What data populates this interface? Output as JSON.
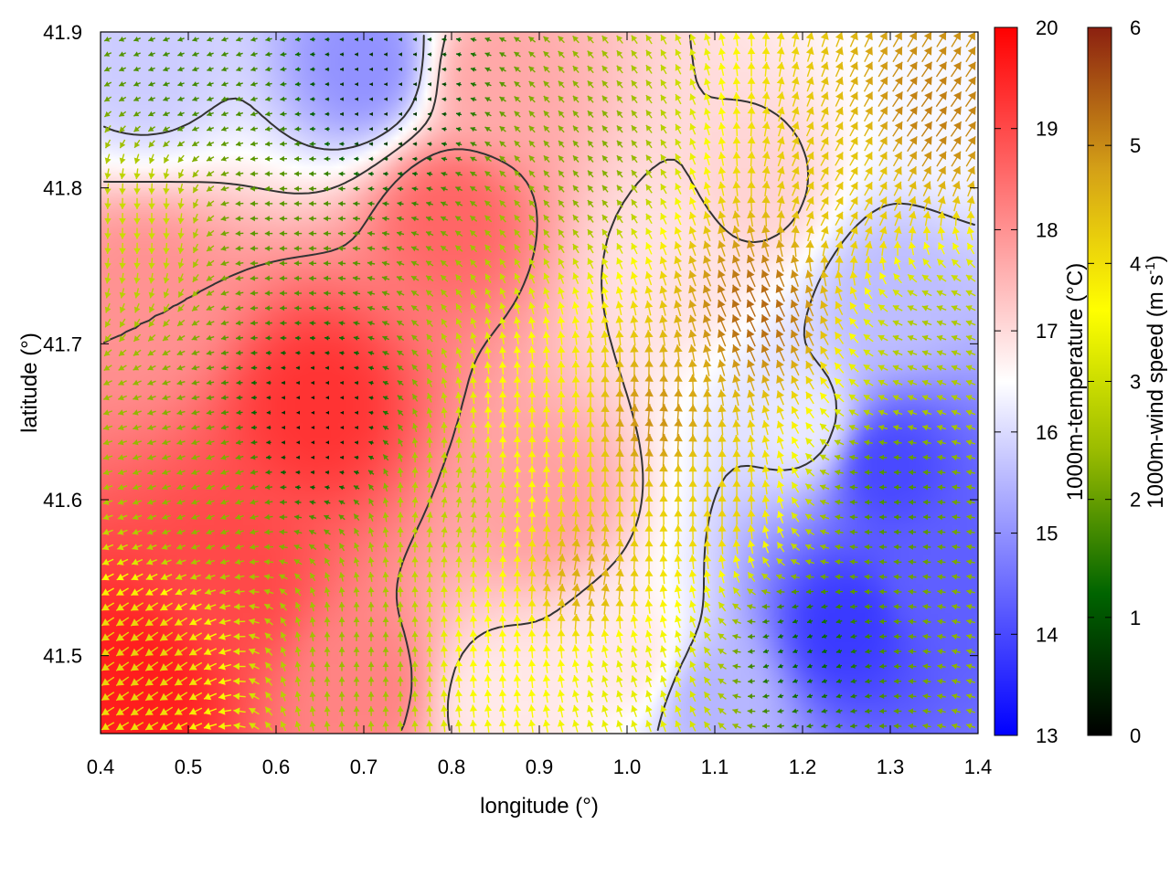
{
  "chart_data": {
    "type": "heatmap",
    "title": "",
    "xlabel": "longitude (°)",
    "ylabel": "latitude (°)",
    "xlim": [
      0.4,
      1.4
    ],
    "ylim": [
      41.45,
      41.9
    ],
    "xticks": [
      "0.4",
      "0.5",
      "0.6",
      "0.7",
      "0.8",
      "0.9",
      "1.0",
      "1.1",
      "1.2",
      "1.3",
      "1.4"
    ],
    "yticks": [
      "41.5",
      "41.6",
      "41.7",
      "41.8",
      "41.9"
    ],
    "temperature_colorbar": {
      "label": "1000m-temperature (°C)",
      "range": [
        13,
        20
      ],
      "ticks": [
        "13",
        "14",
        "15",
        "16",
        "17",
        "18",
        "19",
        "20"
      ],
      "colors": [
        "#0000ff",
        "#ffffff",
        "#ff0000"
      ]
    },
    "wind_colorbar": {
      "label_main": "1000m-wind speed (m s",
      "label_sup": "-1",
      "label_end": ")",
      "range": [
        0,
        6
      ],
      "ticks": [
        "0",
        "1",
        "2",
        "3",
        "4",
        "5",
        "6"
      ],
      "colors": [
        "#000000",
        "#006400",
        "#99bb00",
        "#ffff00",
        "#d4a017",
        "#8b2010"
      ]
    },
    "temperature_field": [
      {
        "lon": 0.65,
        "lat": 41.66,
        "value": 19.3
      },
      {
        "lon": 0.44,
        "lat": 41.48,
        "value": 19.6
      },
      {
        "lon": 0.55,
        "lat": 41.55,
        "value": 19.0
      },
      {
        "lon": 0.8,
        "lat": 41.78,
        "value": 18.6
      },
      {
        "lon": 0.85,
        "lat": 41.87,
        "value": 17.7
      },
      {
        "lon": 0.45,
        "lat": 41.73,
        "value": 18.0
      },
      {
        "lon": 0.9,
        "lat": 41.6,
        "value": 17.8
      },
      {
        "lon": 1.05,
        "lat": 41.75,
        "value": 16.9
      },
      {
        "lon": 1.15,
        "lat": 41.8,
        "value": 17.1
      },
      {
        "lon": 0.7,
        "lat": 41.88,
        "value": 15.0
      },
      {
        "lon": 0.45,
        "lat": 41.88,
        "value": 15.8
      },
      {
        "lon": 0.7,
        "lat": 41.48,
        "value": 18.2
      },
      {
        "lon": 1.0,
        "lat": 41.5,
        "value": 16.8
      },
      {
        "lon": 1.25,
        "lat": 41.52,
        "value": 13.8
      },
      {
        "lon": 1.3,
        "lat": 41.62,
        "value": 14.0
      },
      {
        "lon": 1.35,
        "lat": 41.55,
        "value": 14.3
      },
      {
        "lon": 1.3,
        "lat": 41.73,
        "value": 15.6
      },
      {
        "lon": 1.38,
        "lat": 41.85,
        "value": 16.4
      },
      {
        "lon": 1.1,
        "lat": 41.47,
        "value": 15.5
      },
      {
        "lon": 0.85,
        "lat": 41.47,
        "value": 16.8
      },
      {
        "lon": 1.2,
        "lat": 41.65,
        "value": 16.2
      }
    ],
    "wind_field": [
      {
        "lon": 0.45,
        "lat": 41.5,
        "speed": 4.2,
        "dir": 215
      },
      {
        "lon": 0.52,
        "lat": 41.6,
        "speed": 2.3,
        "dir": 200
      },
      {
        "lon": 0.65,
        "lat": 41.65,
        "speed": 0.3,
        "dir": 180
      },
      {
        "lon": 0.6,
        "lat": 41.78,
        "speed": 1.9,
        "dir": 180
      },
      {
        "lon": 0.45,
        "lat": 41.78,
        "speed": 3.0,
        "dir": 270
      },
      {
        "lon": 0.5,
        "lat": 41.87,
        "speed": 1.7,
        "dir": 200
      },
      {
        "lon": 0.72,
        "lat": 41.86,
        "speed": 0.5,
        "dir": 180
      },
      {
        "lon": 0.8,
        "lat": 41.6,
        "speed": 2.8,
        "dir": 80
      },
      {
        "lon": 0.9,
        "lat": 41.65,
        "speed": 3.8,
        "dir": 90
      },
      {
        "lon": 0.95,
        "lat": 41.82,
        "speed": 2.2,
        "dir": 130
      },
      {
        "lon": 1.03,
        "lat": 41.65,
        "speed": 4.9,
        "dir": 85
      },
      {
        "lon": 1.1,
        "lat": 41.6,
        "speed": 4.2,
        "dir": 90
      },
      {
        "lon": 1.15,
        "lat": 41.72,
        "speed": 5.3,
        "dir": 115
      },
      {
        "lon": 1.25,
        "lat": 41.8,
        "speed": 4.3,
        "dir": 60
      },
      {
        "lon": 1.35,
        "lat": 41.85,
        "speed": 5.1,
        "dir": 55
      },
      {
        "lon": 1.3,
        "lat": 41.6,
        "speed": 1.8,
        "dir": 180
      },
      {
        "lon": 1.2,
        "lat": 41.5,
        "speed": 1.2,
        "dir": 200
      },
      {
        "lon": 1.35,
        "lat": 41.7,
        "speed": 2.6,
        "dir": 160
      },
      {
        "lon": 1.0,
        "lat": 41.48,
        "speed": 3.3,
        "dir": 110
      },
      {
        "lon": 0.85,
        "lat": 41.5,
        "speed": 3.6,
        "dir": 95
      },
      {
        "lon": 0.7,
        "lat": 41.5,
        "speed": 2.4,
        "dir": 90
      },
      {
        "lon": 0.95,
        "lat": 41.55,
        "speed": 4.6,
        "dir": 80
      }
    ]
  }
}
